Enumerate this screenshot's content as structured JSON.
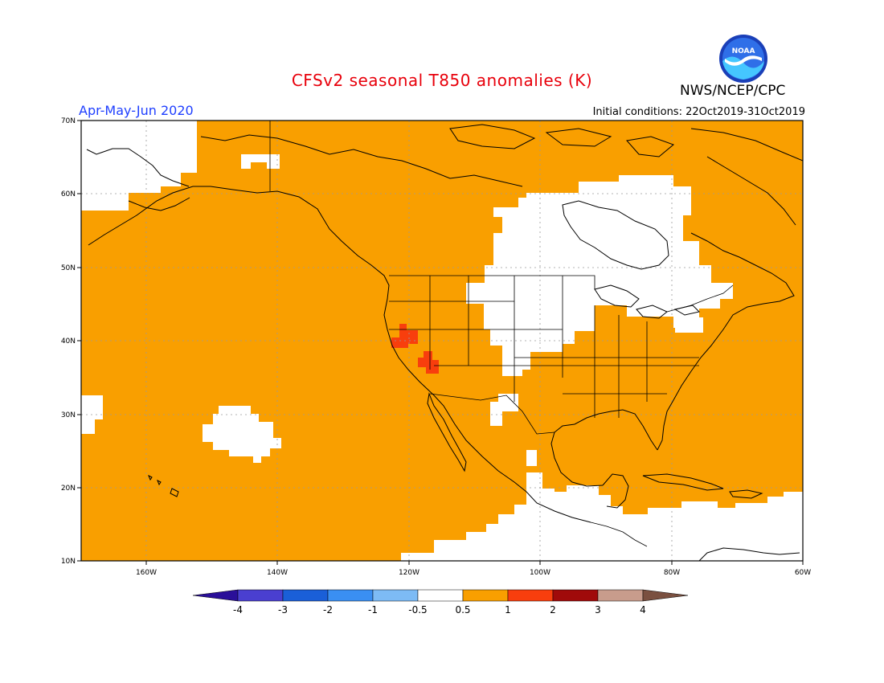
{
  "header": {
    "title": "CFSv2 seasonal T850 anomalies (K)",
    "season": "Apr-May-Jun 2020",
    "initial_conditions": "Initial conditions: 22Oct2019-31Oct2019",
    "agency": "NWS/NCEP/CPC",
    "logo_text": "NOAA",
    "title_color": "#e8000b",
    "season_color": "#1f3fff"
  },
  "map": {
    "lon_range": [
      "170W",
      "60W"
    ],
    "lat_range": [
      "10N",
      "70N"
    ],
    "lon_ticks": [
      "160W",
      "140W",
      "120W",
      "100W",
      "80W",
      "60W"
    ],
    "lat_ticks": [
      "10N",
      "20N",
      "30N",
      "40N",
      "50N",
      "60N",
      "70N"
    ],
    "background_fill": "#f99f00",
    "neutral_fill": "#ffffff",
    "warm_fill": "#f83e0d"
  },
  "colorbar": {
    "labels": [
      "-4",
      "-3",
      "-2",
      "-1",
      "-0.5",
      "0.5",
      "1",
      "2",
      "3",
      "4"
    ],
    "colors": [
      "#2a0f99",
      "#4a3fd0",
      "#1a5fd8",
      "#3a8ff2",
      "#7dbbf5",
      "#ffffff",
      "#f99f00",
      "#f83e0d",
      "#a00a0a",
      "#c89c8c",
      "#7a5040"
    ]
  }
}
